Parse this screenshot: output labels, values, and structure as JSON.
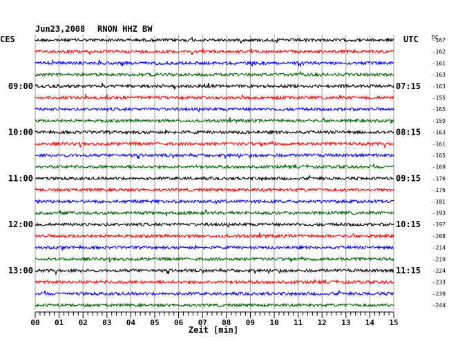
{
  "header": {
    "date": "Jun23,2008",
    "station": "RNON HHZ BW"
  },
  "left_label": "CES",
  "right_label": "UTC",
  "dc_label": "DC",
  "xlabel": "Zeit [min]",
  "colors": [
    "#000000",
    "#ff0000",
    "#0000ff",
    "#006400"
  ],
  "chart_data": {
    "type": "line",
    "title": "Jun23,2008  RNON HHZ BW",
    "xlabel": "Zeit [min]",
    "xlim": [
      0,
      15
    ],
    "x_ticks": [
      "00",
      "01",
      "02",
      "03",
      "04",
      "05",
      "06",
      "07",
      "08",
      "09",
      "10",
      "11",
      "12",
      "13",
      "14",
      "15"
    ],
    "left_time_labels": [
      {
        "row": 4,
        "label": "09:00"
      },
      {
        "row": 8,
        "label": "10:00"
      },
      {
        "row": 12,
        "label": "11:00"
      },
      {
        "row": 16,
        "label": "12:00"
      },
      {
        "row": 20,
        "label": "13:00"
      }
    ],
    "right_time_labels": [
      {
        "row": 4,
        "label": "07:15"
      },
      {
        "row": 8,
        "label": "08:15"
      },
      {
        "row": 12,
        "label": "09:15"
      },
      {
        "row": 16,
        "label": "10:15"
      },
      {
        "row": 20,
        "label": "11:15"
      }
    ],
    "dc_offsets": [
      -167,
      -162,
      -161,
      -163,
      -163,
      -155,
      -165,
      -159,
      -163,
      -161,
      -165,
      -169,
      -170,
      -176,
      -181,
      -193,
      -197,
      -208,
      -214,
      -219,
      -224,
      -233,
      -239,
      -244
    ],
    "grid": true,
    "trace_count": 24
  }
}
